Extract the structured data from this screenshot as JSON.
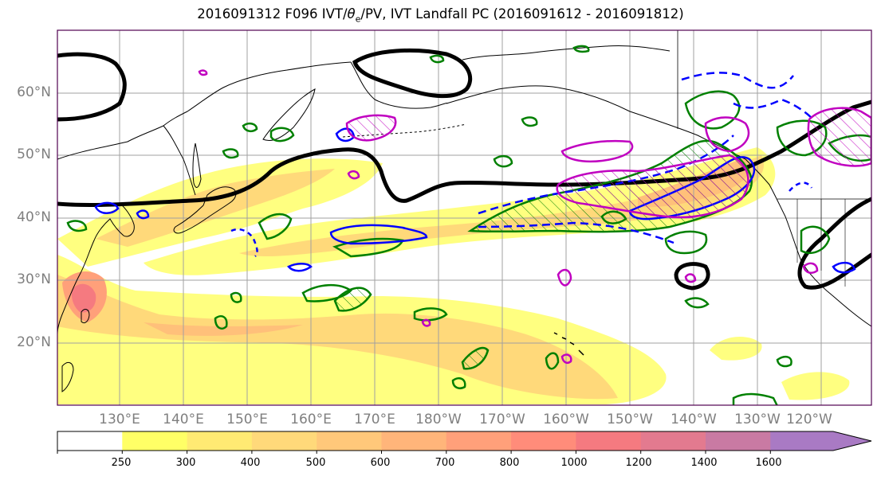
{
  "title": {
    "pre": "2016091312 F096 IVT/",
    "theta": "θ",
    "sub": "e",
    "post": "/PV, IVT Landfall PC (2016091612 - 2016091812)"
  },
  "latitude_labels": [
    "60°N",
    "50°N",
    "40°N",
    "30°N",
    "20°N"
  ],
  "longitude_labels": [
    "130°E",
    "140°E",
    "150°E",
    "160°E",
    "170°E",
    "180°W",
    "170°W",
    "160°W",
    "150°W",
    "140°W",
    "130°W",
    "120°W"
  ],
  "colorbar": {
    "ticks": [
      "250",
      "300",
      "400",
      "500",
      "600",
      "700",
      "800",
      "1000",
      "1200",
      "1400",
      "1600"
    ],
    "colors": [
      "#ffff66",
      "#ffea73",
      "#ffd97a",
      "#ffc87a",
      "#ffb57a",
      "#ffa07a",
      "#ff8c7a",
      "#f57a80",
      "#e37a8f",
      "#c97aa3",
      "#a97ac4"
    ]
  },
  "legend_colors": {
    "isentrope": "#000000",
    "pv_blue": "#0000ff",
    "pv_green": "#008000",
    "pv_magenta": "#c000c0",
    "land": "#000000",
    "grid": "#a0a0a0"
  }
}
